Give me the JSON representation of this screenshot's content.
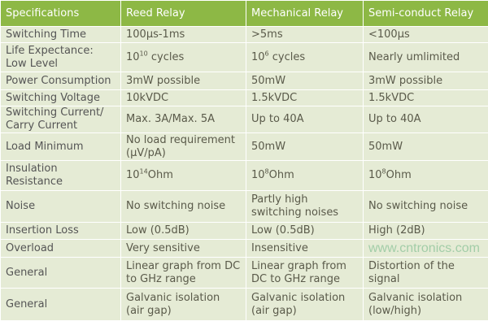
{
  "headers": [
    "Specifications",
    "Reed Relay",
    "Mechanical Relay",
    "Semi-conduct Relay"
  ],
  "rows": [
    {
      "spec": "Switching Time",
      "reed": "100µs-1ms",
      "mech": ">5ms",
      "semi": "<100µs"
    },
    {
      "spec": "Life Expectance: Low Level",
      "reed": {
        "base": "10",
        "exp": "10",
        "suffix": " cycles"
      },
      "mech": {
        "base": "10",
        "exp": "6",
        "suffix": " cycles"
      },
      "semi": "Nearly umlimited"
    },
    {
      "spec": "Power Consumption",
      "reed": "3mW possible",
      "mech": "50mW",
      "semi": "3mW possible"
    },
    {
      "spec": "Switching Voltage",
      "reed": "10kVDC",
      "mech": "1.5kVDC",
      "semi": "1.5kVDC"
    },
    {
      "spec": "Switching Current/ Carry Current",
      "reed": "Max. 3A/Max. 5A",
      "mech": "Up to 40A",
      "semi": "Up to 40A"
    },
    {
      "spec": "Load Minimum",
      "reed": "No load requirement (µV/pA)",
      "mech": "50mW",
      "semi": "50mW"
    },
    {
      "spec": "Insulation Resistance",
      "reed": {
        "base": "10",
        "exp": "14",
        "suffix": "Ohm"
      },
      "mech": {
        "base": "10",
        "exp": "8",
        "suffix": "Ohm"
      },
      "semi": {
        "base": "10",
        "exp": "8",
        "suffix": "Ohm"
      }
    },
    {
      "spec": "Noise",
      "reed": "No switching noise",
      "mech": "Partly high switching noises",
      "semi": "No switching noise"
    },
    {
      "spec": "Insertion Loss",
      "reed": "Low (0.5dB)",
      "mech": "Low (0.5dB)",
      "semi": "High (2dB)"
    },
    {
      "spec": "Overload",
      "reed": "Very sensitive",
      "mech": "Insensitive",
      "semi": ""
    },
    {
      "spec": "General",
      "reed": "Linear graph from DC to GHz range",
      "mech": "Linear graph from DC to GHz range",
      "semi": "Distortion of the signal"
    },
    {
      "spec": "General",
      "reed": "Galvanic isolation (air gap)",
      "mech": "Galvanic isolation (air gap)",
      "semi": "Galvanic isolation (low/high)"
    }
  ],
  "watermark": "www.cntronics.com",
  "colors": {
    "header": "#8db845",
    "cell": "#e5ebd5",
    "border": "#ffffff"
  }
}
